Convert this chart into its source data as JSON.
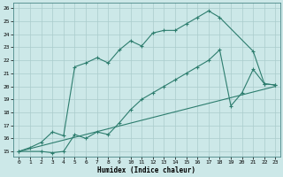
{
  "bg_color": "#cce8e8",
  "grid_color": "#b0d4d4",
  "line_color": "#2d7d6e",
  "xlabel": "Humidex (Indice chaleur)",
  "xlim_min": -0.5,
  "xlim_max": 23.4,
  "ylim_min": 14.6,
  "ylim_max": 26.4,
  "xticks": [
    0,
    1,
    2,
    3,
    4,
    5,
    6,
    7,
    8,
    9,
    10,
    11,
    12,
    13,
    14,
    15,
    16,
    17,
    18,
    19,
    20,
    21,
    22,
    23
  ],
  "yticks": [
    15,
    16,
    17,
    18,
    19,
    20,
    21,
    22,
    23,
    24,
    25,
    26
  ],
  "line1_x": [
    0,
    1,
    2,
    3,
    4,
    5,
    6,
    7,
    8,
    9,
    10,
    11,
    12,
    13,
    14,
    15,
    16,
    17,
    18,
    21,
    22,
    23
  ],
  "line1_y": [
    15.0,
    15.3,
    15.7,
    16.5,
    16.2,
    21.5,
    21.8,
    22.2,
    21.8,
    22.8,
    23.5,
    23.1,
    24.1,
    24.3,
    24.3,
    24.8,
    25.3,
    25.8,
    25.3,
    22.7,
    20.2,
    20.1
  ],
  "line2_x": [
    0,
    2,
    3,
    4,
    5,
    6,
    7,
    8,
    9,
    10,
    11,
    12,
    13,
    14,
    15,
    16,
    17,
    18,
    19,
    20,
    21,
    22,
    23
  ],
  "line2_y": [
    15.0,
    15.0,
    14.9,
    15.0,
    16.3,
    16.0,
    16.5,
    16.3,
    17.2,
    18.2,
    19.0,
    19.5,
    20.0,
    20.5,
    21.0,
    21.5,
    22.0,
    22.8,
    18.5,
    19.5,
    21.3,
    20.2,
    20.1
  ],
  "line3_x": [
    0,
    23
  ],
  "line3_y": [
    15.0,
    20.0
  ]
}
